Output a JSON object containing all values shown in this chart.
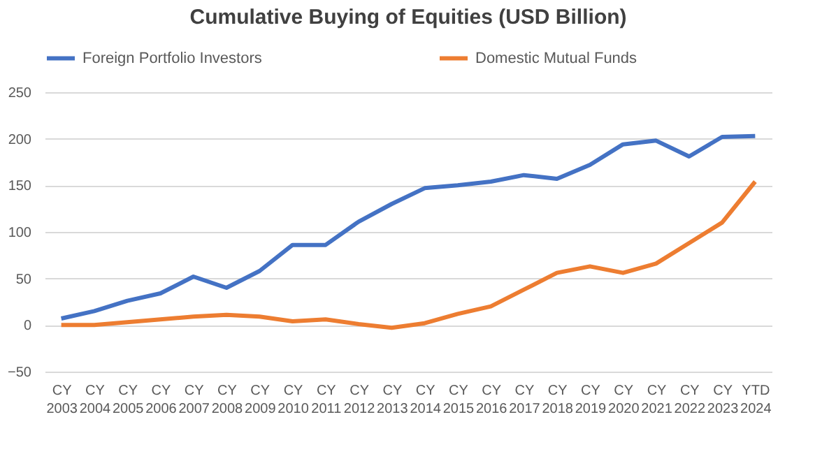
{
  "chart_data": {
    "type": "line",
    "title": "Cumulative Buying of Equities (USD Billion)",
    "categories": [
      "CY 2003",
      "CY 2004",
      "CY 2005",
      "CY 2006",
      "CY 2007",
      "CY 2008",
      "CY 2009",
      "CY 2010",
      "CY 2011",
      "CY 2012",
      "CY 2013",
      "CY 2014",
      "CY 2015",
      "CY 2016",
      "CY 2017",
      "CY 2018",
      "CY 2019",
      "CY 2020",
      "CY 2021",
      "CY 2022",
      "CY 2023",
      "YTD 2024"
    ],
    "series": [
      {
        "name": "Foreign Portfolio Investors",
        "color": "#4472c4",
        "values": [
          7,
          15,
          26,
          34,
          52,
          40,
          58,
          86,
          86,
          111,
          130,
          147,
          150,
          154,
          161,
          157,
          172,
          194,
          198,
          181,
          202,
          203
        ]
      },
      {
        "name": "Domestic Mutual Funds",
        "color": "#ed7d31",
        "values": [
          0,
          0,
          3,
          6,
          9,
          11,
          9,
          4,
          6,
          1,
          -3,
          2,
          12,
          20,
          38,
          56,
          63,
          56,
          66,
          88,
          110,
          154
        ]
      }
    ],
    "ylim": [
      -50,
      250
    ],
    "yticks": [
      -50,
      0,
      50,
      100,
      150,
      200,
      250
    ],
    "grid": "y",
    "legend": "top",
    "marker": "none",
    "line_style": "solid"
  }
}
